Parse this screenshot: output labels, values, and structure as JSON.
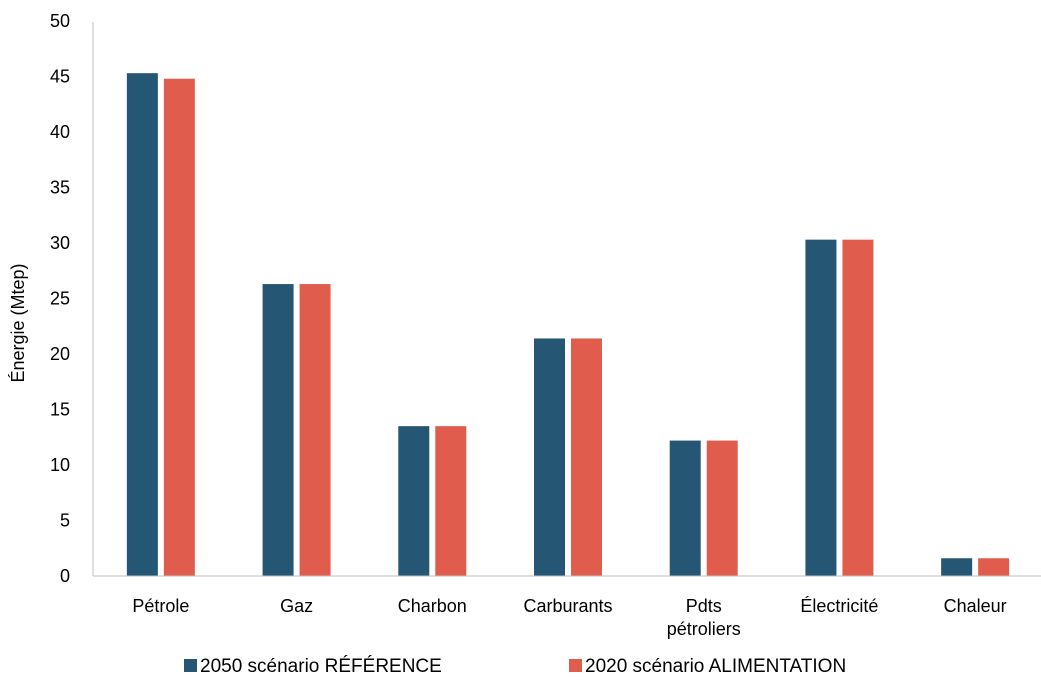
{
  "chart_data": {
    "type": "bar",
    "title": "",
    "xlabel": "",
    "ylabel": "Énergie (Mtep)",
    "ylim": [
      0,
      50
    ],
    "yticks": [
      0,
      5,
      10,
      15,
      20,
      25,
      30,
      35,
      40,
      45,
      50
    ],
    "grid": false,
    "legend_position": "bottom",
    "categories": [
      [
        "Pétrole"
      ],
      [
        "Gaz"
      ],
      [
        "Charbon"
      ],
      [
        "Carburants"
      ],
      [
        "Pdts",
        "pétroliers"
      ],
      [
        "Électricité"
      ],
      [
        "Chaleur"
      ]
    ],
    "series": [
      {
        "name": "2050 scénario RÉFÉRENCE",
        "color": "#255775",
        "values": [
          45.3,
          26.3,
          13.5,
          21.4,
          12.2,
          30.3,
          1.6
        ]
      },
      {
        "name": "2020 scénario ALIMENTATION",
        "color": "#E05C4C",
        "values": [
          44.8,
          26.3,
          13.5,
          21.4,
          12.2,
          30.3,
          1.6
        ]
      }
    ]
  }
}
